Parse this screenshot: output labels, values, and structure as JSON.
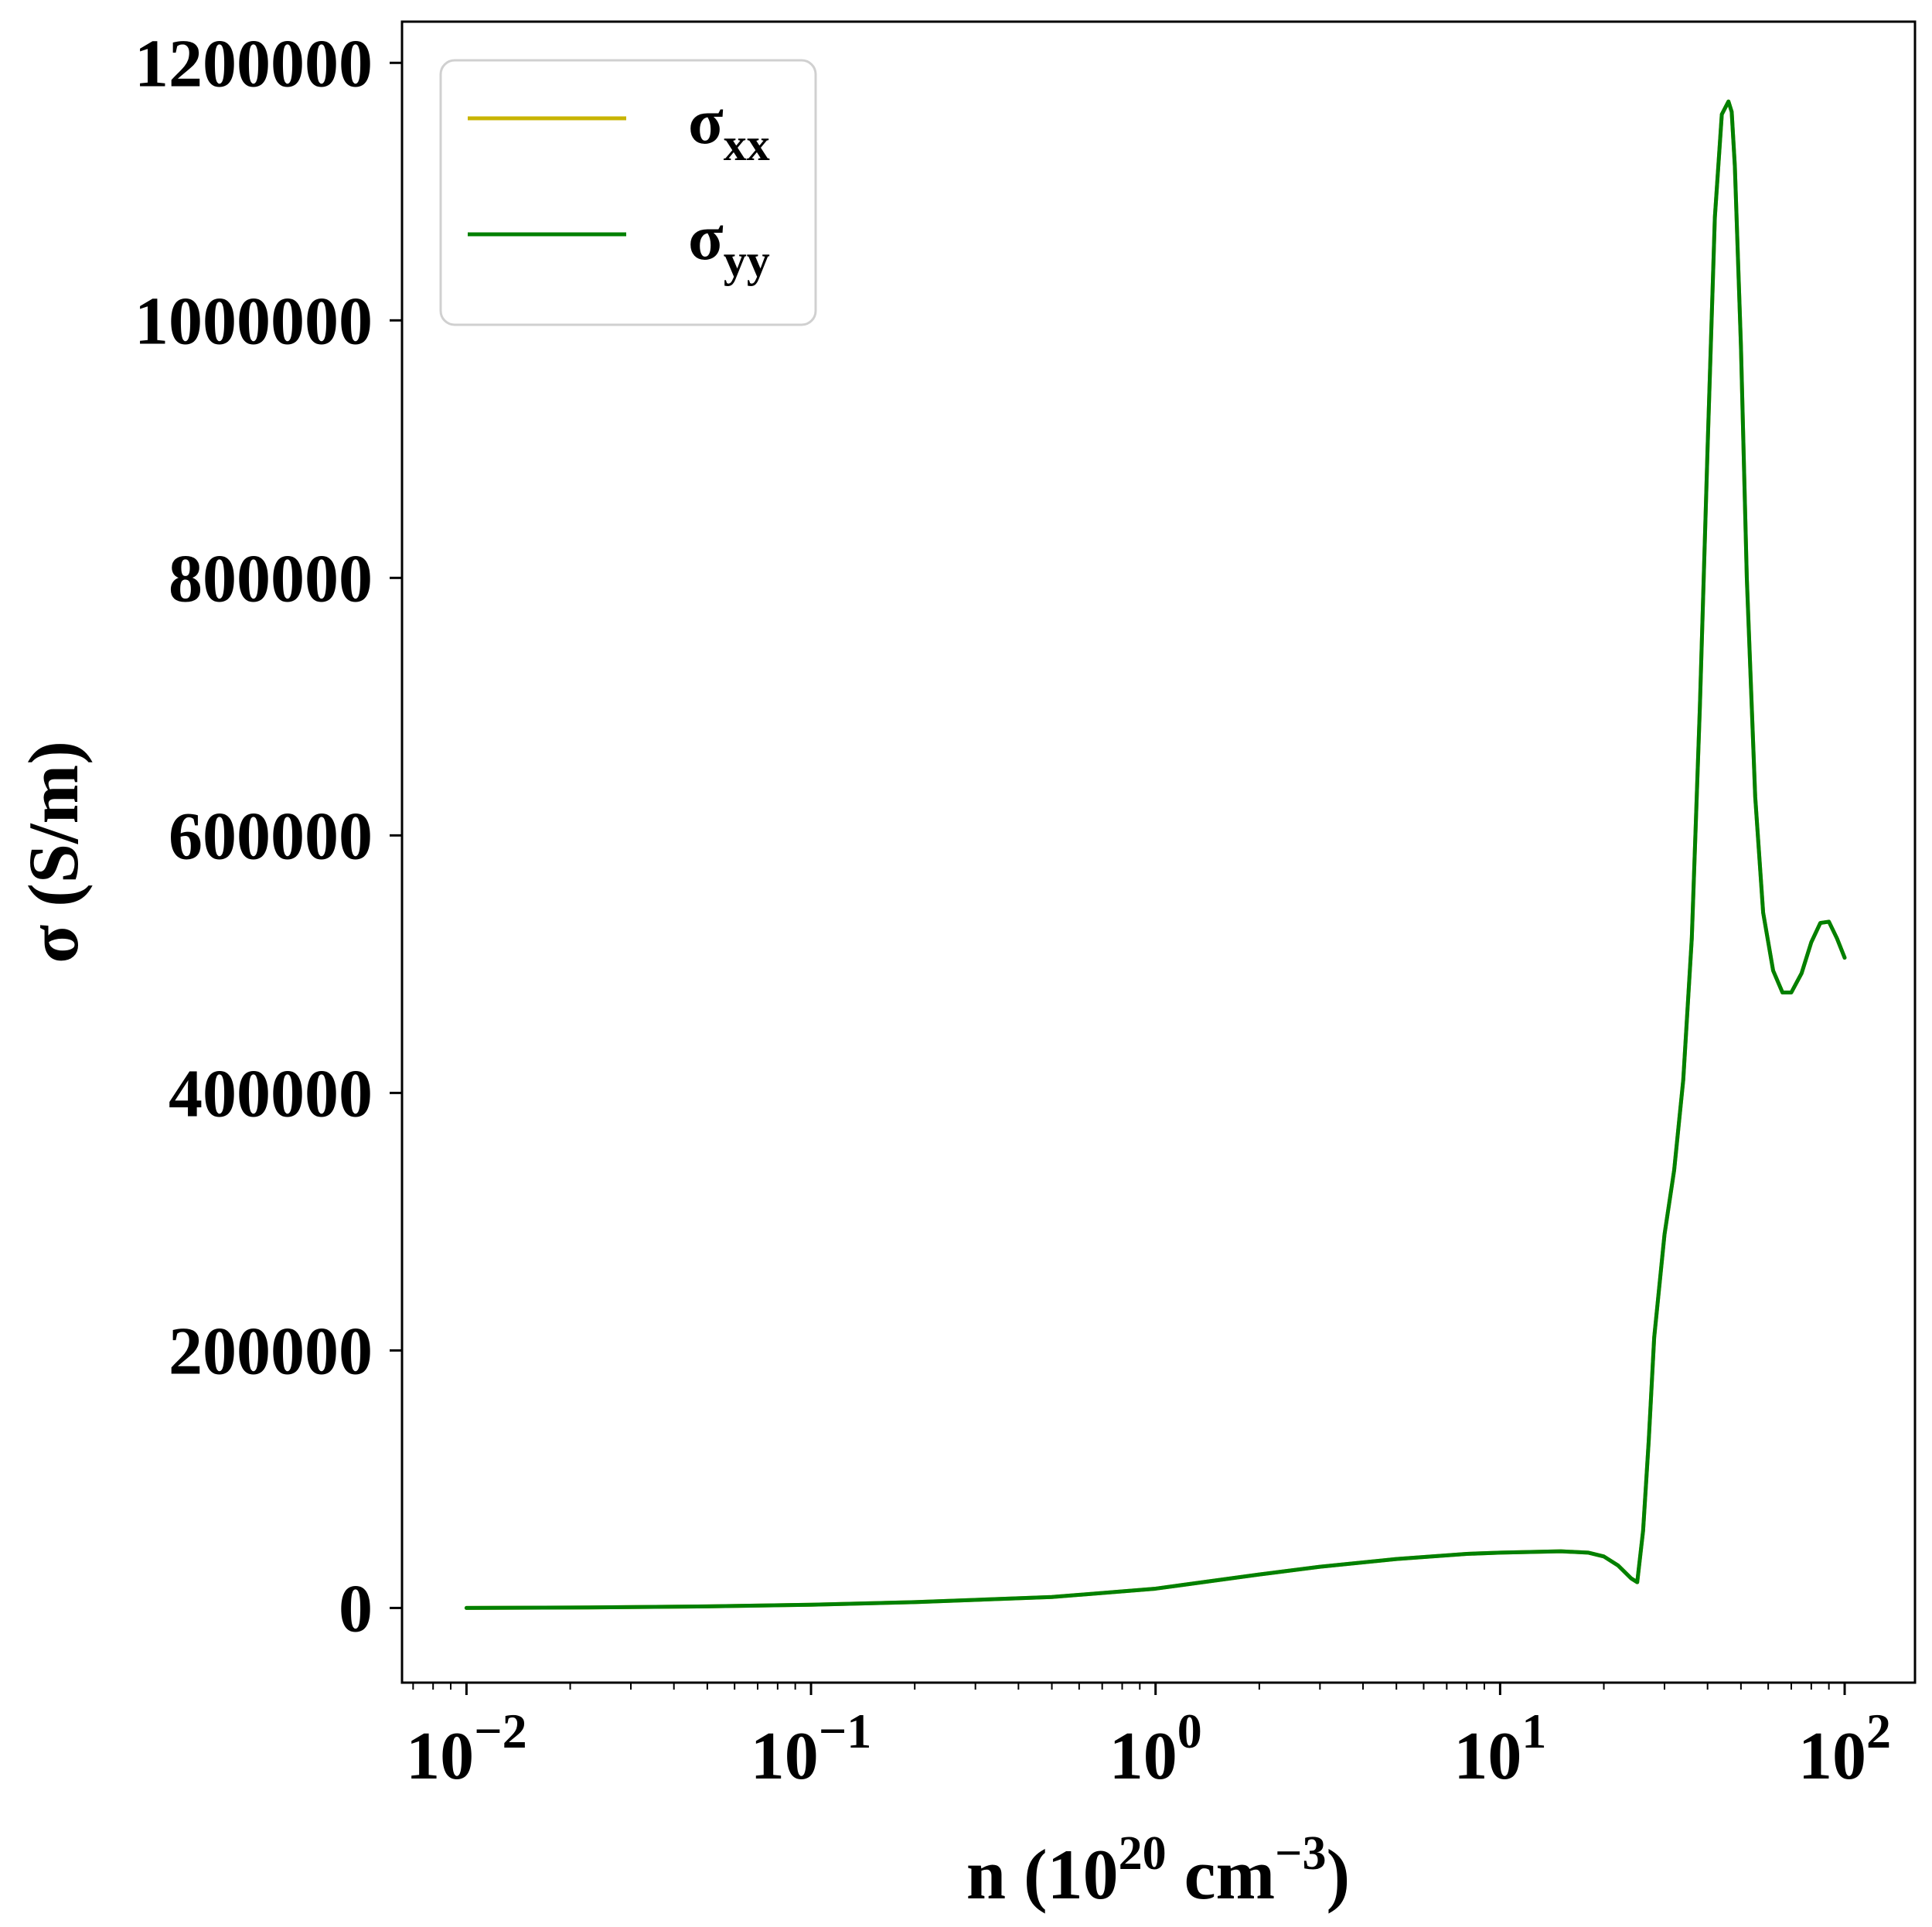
{
  "chart_data": {
    "type": "line",
    "xscale": "log",
    "xlim": [
      0.0065,
      160
    ],
    "ylim": [
      -58000,
      1232000
    ],
    "xlabel": {
      "prefix": "n (10",
      "sup1": "20",
      "mid": " cm",
      "sup2": "−3",
      "suffix": ")"
    },
    "ylabel": "σ (S/m)",
    "title": "",
    "grid": false,
    "legend_position": "top-left",
    "x_ticks": [
      {
        "value": 0.01,
        "base": "10",
        "exp": "−2"
      },
      {
        "value": 0.1,
        "base": "10",
        "exp": "−1"
      },
      {
        "value": 1,
        "base": "10",
        "exp": "0"
      },
      {
        "value": 10,
        "base": "10",
        "exp": "1"
      },
      {
        "value": 100,
        "base": "10",
        "exp": "2"
      }
    ],
    "y_ticks": [
      {
        "value": 0,
        "label": "0"
      },
      {
        "value": 200000,
        "label": "200000"
      },
      {
        "value": 400000,
        "label": "400000"
      },
      {
        "value": 600000,
        "label": "600000"
      },
      {
        "value": 800000,
        "label": "800000"
      },
      {
        "value": 1000000,
        "label": "1000000"
      },
      {
        "value": 1200000,
        "label": "1200000"
      }
    ],
    "series": [
      {
        "name": "σ",
        "sub": "xx",
        "color": "#c8b400",
        "x": [
          0.01,
          0.02,
          0.05,
          0.1,
          0.2,
          0.5,
          1,
          2,
          3,
          5,
          8,
          10,
          15,
          18,
          20,
          22,
          24,
          25,
          26,
          27,
          28,
          30,
          32,
          34,
          36,
          38,
          40,
          42,
          44,
          46,
          47,
          48,
          50,
          52,
          55,
          58,
          62,
          66,
          70,
          75,
          80,
          85,
          90,
          95,
          100
        ],
        "y": [
          0,
          300,
          1200,
          2500,
          4500,
          8500,
          15000,
          26000,
          32000,
          38000,
          42000,
          43000,
          44000,
          43000,
          40000,
          33000,
          23000,
          20000,
          60000,
          130000,
          210000,
          290000,
          340000,
          410000,
          520000,
          700000,
          900000,
          1080000,
          1160000,
          1170000,
          1162000,
          1120000,
          980000,
          800000,
          630000,
          540000,
          495000,
          478000,
          478000,
          493000,
          517000,
          532000,
          533000,
          520000,
          505000
        ]
      },
      {
        "name": "σ",
        "sub": "yy",
        "color": "#008000",
        "x": [
          0.01,
          0.02,
          0.05,
          0.1,
          0.2,
          0.5,
          1,
          2,
          3,
          5,
          8,
          10,
          15,
          18,
          20,
          22,
          24,
          25,
          26,
          27,
          28,
          30,
          32,
          34,
          36,
          38,
          40,
          42,
          44,
          46,
          47,
          48,
          50,
          52,
          55,
          58,
          62,
          66,
          70,
          75,
          80,
          85,
          90,
          95,
          100
        ],
        "y": [
          0,
          300,
          1200,
          2500,
          4500,
          8500,
          15000,
          26000,
          32000,
          38000,
          42000,
          43000,
          44000,
          43000,
          40000,
          33000,
          23000,
          20000,
          60000,
          130000,
          210000,
          290000,
          340000,
          410000,
          520000,
          700000,
          900000,
          1080000,
          1160000,
          1170000,
          1162000,
          1120000,
          980000,
          800000,
          630000,
          540000,
          495000,
          478000,
          478000,
          493000,
          517000,
          532000,
          533000,
          520000,
          505000
        ]
      }
    ]
  }
}
